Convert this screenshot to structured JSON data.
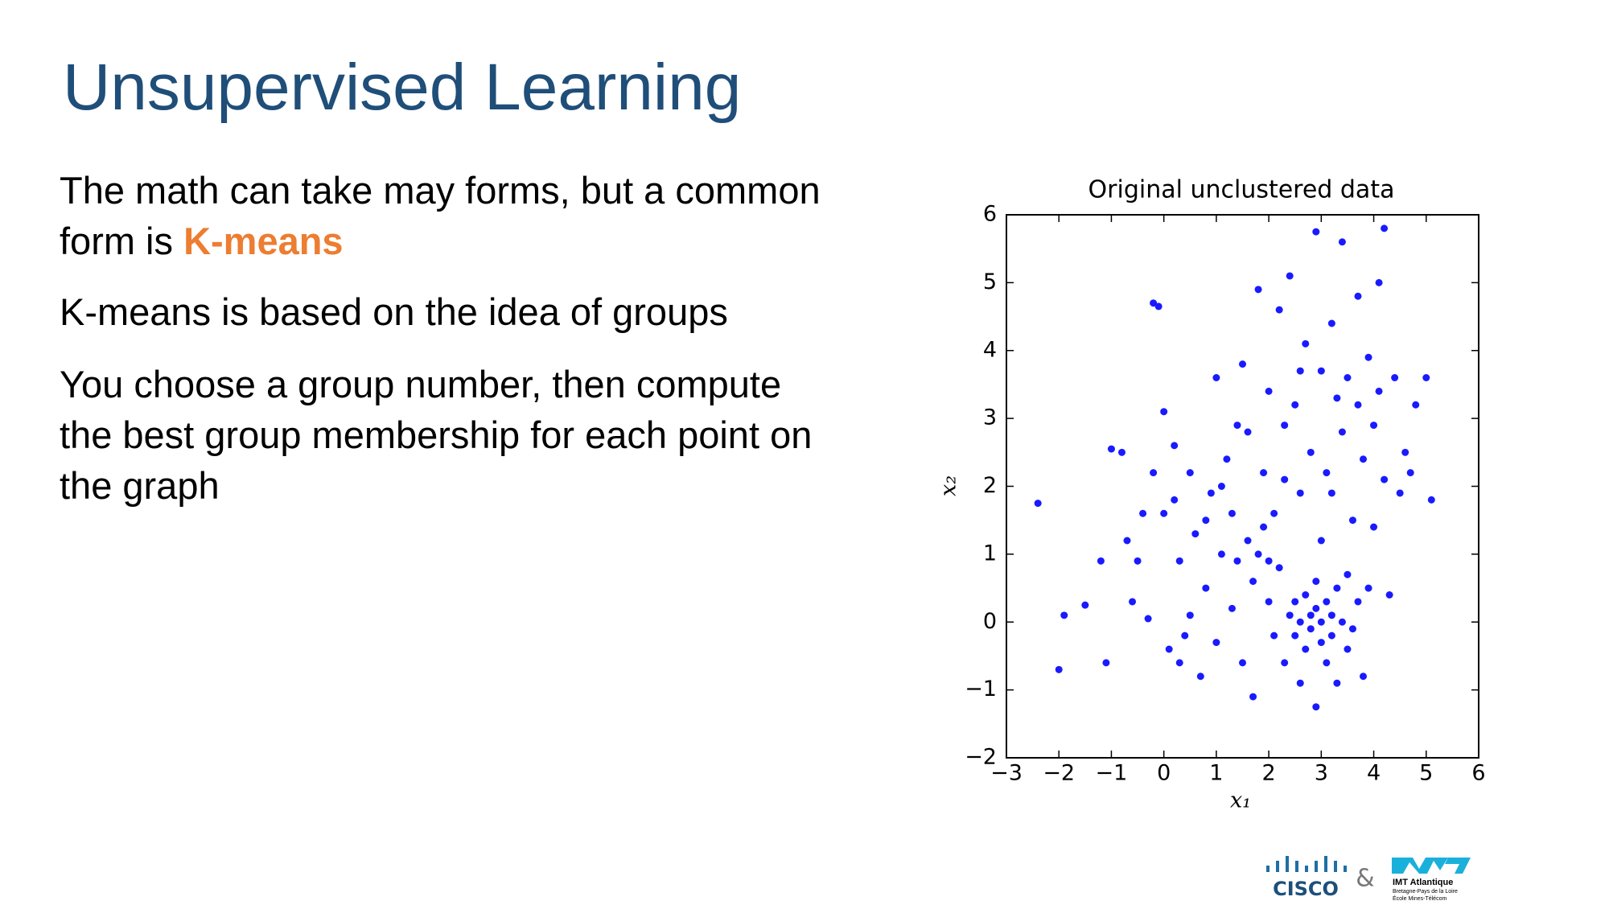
{
  "title": "Unsupervised Learning",
  "bullets": [
    {
      "text": "The math can take may forms, but a common form is ",
      "highlight": "K-means"
    },
    {
      "text": "K-means is based on the idea of groups"
    },
    {
      "text": "You choose a group number, then compute the best group membership for each point on the graph"
    }
  ],
  "footer": {
    "cisco": "CISCO",
    "amp": "&",
    "imt": "IMT Atlantique",
    "imt_line1": "Bretagne-Pays de la Loire",
    "imt_line2": "École Mines-Télécom"
  },
  "chart_data": {
    "type": "scatter",
    "title": "Original unclustered data",
    "xlabel": "x₁",
    "ylabel": "x₂",
    "color": "#1a1aff",
    "x": [
      -2.4,
      -2,
      -1.9,
      -1.5,
      -1.2,
      -1.1,
      -1.0,
      -0.8,
      -0.7,
      -0.6,
      -0.5,
      -0.3,
      -0.2,
      -0.1,
      -0.2,
      0,
      0,
      0.1,
      0.2,
      0.3,
      0.4,
      0.5,
      0.6,
      0.7,
      0.8,
      0.9,
      1.0,
      1.0,
      1.1,
      1.2,
      1.3,
      1.3,
      1.4,
      1.5,
      1.5,
      1.6,
      1.6,
      1.7,
      1.7,
      1.8,
      1.8,
      1.9,
      2.0,
      2.0,
      2.1,
      2.1,
      2.2,
      2.2,
      2.3,
      2.3,
      2.4,
      2.4,
      2.5,
      2.5,
      2.5,
      2.6,
      2.6,
      2.6,
      2.7,
      2.7,
      2.7,
      2.8,
      2.8,
      2.8,
      2.9,
      2.9,
      2.9,
      2.9,
      3.0,
      3.0,
      3.0,
      3.0,
      3.1,
      3.1,
      3.1,
      3.2,
      3.2,
      3.2,
      3.3,
      3.3,
      3.3,
      3.4,
      3.4,
      3.4,
      3.5,
      3.5,
      3.5,
      3.6,
      3.6,
      3.7,
      3.7,
      3.7,
      3.8,
      3.8,
      3.9,
      3.9,
      4.0,
      4.0,
      4.1,
      4.1,
      4.2,
      4.2,
      4.3,
      4.4,
      4.5,
      4.6,
      4.7,
      4.8,
      5.0,
      5.1,
      0.2,
      0.5,
      1.1,
      1.9,
      2.3,
      2.6,
      1.4,
      0.8,
      3.2,
      2.0,
      -0.4,
      0.3
    ],
    "values": [
      1.75,
      -0.7,
      0.1,
      0.25,
      0.9,
      -0.6,
      2.55,
      2.5,
      1.2,
      0.3,
      0.9,
      0.05,
      4.7,
      4.65,
      2.2,
      3.1,
      1.6,
      -0.4,
      2.6,
      0.9,
      -0.2,
      2.2,
      1.3,
      -0.8,
      0.5,
      1.9,
      3.6,
      -0.3,
      1.0,
      2.4,
      0.2,
      1.6,
      0.9,
      3.8,
      -0.6,
      1.2,
      2.8,
      0.6,
      -1.1,
      4.9,
      1.0,
      2.2,
      0.3,
      3.4,
      -0.2,
      1.6,
      4.6,
      0.8,
      -0.6,
      2.9,
      0.1,
      5.1,
      0.3,
      -0.2,
      3.2,
      0.0,
      1.9,
      -0.9,
      0.4,
      -0.4,
      4.1,
      0.1,
      2.5,
      -0.1,
      5.75,
      -1.25,
      0.2,
      0.6,
      -0.3,
      0.0,
      3.7,
      1.2,
      0.3,
      -0.6,
      2.2,
      0.1,
      4.4,
      -0.2,
      0.5,
      3.3,
      -0.9,
      0.0,
      5.6,
      2.8,
      -0.4,
      3.6,
      0.7,
      1.5,
      -0.1,
      4.8,
      3.2,
      0.3,
      2.4,
      -0.8,
      3.9,
      0.5,
      1.4,
      2.9,
      5.0,
      3.4,
      5.8,
      2.1,
      0.4,
      3.6,
      1.9,
      2.5,
      2.2,
      3.2,
      3.6,
      1.8,
      1.8,
      0.1,
      2.0,
      1.4,
      2.1,
      3.7,
      2.9,
      1.5,
      1.9,
      0.9,
      1.6,
      -0.6
    ],
    "xlim": [
      -3,
      6
    ],
    "ylim": [
      -2,
      6
    ],
    "xticks": [
      {
        "value": -3,
        "label": "−3"
      },
      {
        "value": -2,
        "label": "−2"
      },
      {
        "value": -1,
        "label": "−1"
      },
      0,
      1,
      2,
      3,
      4,
      5,
      6
    ],
    "yticks": [
      {
        "value": -2,
        "label": "−2"
      },
      {
        "value": -1,
        "label": "−1"
      },
      0,
      1,
      2,
      3,
      4,
      5,
      6
    ]
  }
}
